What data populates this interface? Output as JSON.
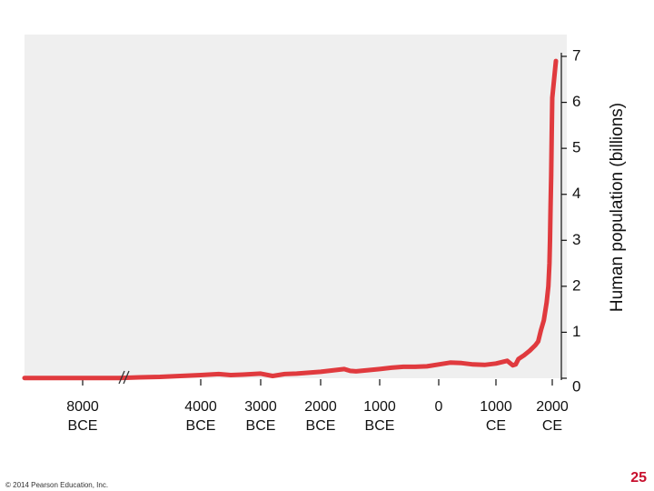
{
  "chart_data": {
    "type": "line",
    "title": "",
    "xlabel": "",
    "ylabel": "Human population (billions)",
    "ylim": [
      0,
      7
    ],
    "y_ticks": [
      "0",
      "1",
      "2",
      "3",
      "4",
      "5",
      "6",
      "7"
    ],
    "x_ticks": [
      {
        "line1": "8000",
        "line2": "BCE",
        "year": -8000
      },
      {
        "line1": "4000",
        "line2": "BCE",
        "year": -4000
      },
      {
        "line1": "3000",
        "line2": "BCE",
        "year": -3000
      },
      {
        "line1": "2000",
        "line2": "BCE",
        "year": -2000
      },
      {
        "line1": "1000",
        "line2": "BCE",
        "year": -1000
      },
      {
        "line1": "0",
        "line2": "",
        "year": 0
      },
      {
        "line1": "1000",
        "line2": "CE",
        "year": 1000
      },
      {
        "line1": "2000",
        "line2": "CE",
        "year": 2000
      }
    ],
    "axis_break": true,
    "y_axis_position": "right",
    "grid": false,
    "line_color": "#e03a3e",
    "panel_color": "#efefef",
    "series": [
      {
        "x": [
          -9000,
          -8000,
          -7000,
          -6000,
          -5500,
          -5000,
          -4000,
          -3700,
          -3500,
          -3300,
          -3000,
          -2800,
          -2600,
          -2400,
          -2100,
          -2000,
          -1800,
          -1600,
          -1500,
          -1400,
          -1000,
          -800,
          -600,
          -400,
          -200,
          0,
          200,
          400,
          600,
          800,
          1000,
          1100,
          1200,
          1300,
          1350,
          1400,
          1500,
          1600,
          1700,
          1750,
          1800,
          1850,
          1900,
          1930,
          1950,
          1960,
          1970,
          1980,
          1990,
          2000,
          2010
        ],
        "values": [
          0.005,
          0.005,
          0.005,
          0.005,
          0.02,
          0.03,
          0.07,
          0.09,
          0.07,
          0.08,
          0.1,
          0.05,
          0.09,
          0.1,
          0.13,
          0.14,
          0.17,
          0.2,
          0.16,
          0.15,
          0.2,
          0.23,
          0.25,
          0.25,
          0.26,
          0.3,
          0.34,
          0.33,
          0.3,
          0.29,
          0.32,
          0.35,
          0.38,
          0.28,
          0.3,
          0.42,
          0.5,
          0.6,
          0.72,
          0.8,
          1.05,
          1.26,
          1.65,
          2.0,
          2.5,
          3.0,
          3.7,
          4.4,
          5.3,
          6.1,
          6.9
        ]
      }
    ]
  },
  "footer": {
    "copyright": "© 2014 Pearson Education, Inc.",
    "page_number": "25"
  }
}
